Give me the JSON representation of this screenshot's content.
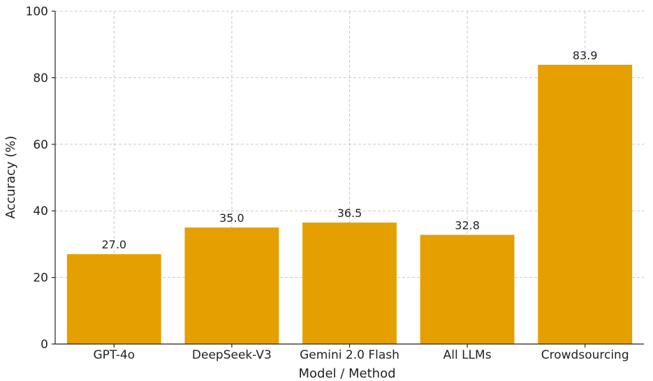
{
  "chart_data": {
    "type": "bar",
    "categories": [
      "GPT-4o",
      "DeepSeek-V3",
      "Gemini 2.0 Flash",
      "All LLMs",
      "Crowdsourcing"
    ],
    "values": [
      27.0,
      35.0,
      36.5,
      32.8,
      83.9
    ],
    "data_labels": [
      "27.0",
      "35.0",
      "36.5",
      "32.8",
      "83.9"
    ],
    "title": "",
    "xlabel": "Model / Method",
    "ylabel": "Accuracy (%)",
    "ylim": [
      0,
      100
    ],
    "yticks": [
      0,
      20,
      40,
      60,
      80,
      100
    ],
    "bar_color": "#e5a000",
    "grid": true
  }
}
